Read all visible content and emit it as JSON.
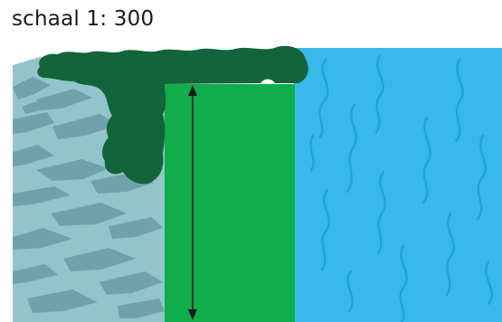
{
  "scale_label": "schaal 1: 300",
  "colors": {
    "rock_base": "#93c4cb",
    "rock_streak": "#6fa2ad",
    "vegetation": "#13643a",
    "building": "#10ad4c",
    "water": "#38b9e9",
    "water_wave": "#1ea4dc",
    "arrow": "#1a1a1a"
  },
  "icons": [
    "vertical-double-arrow"
  ]
}
